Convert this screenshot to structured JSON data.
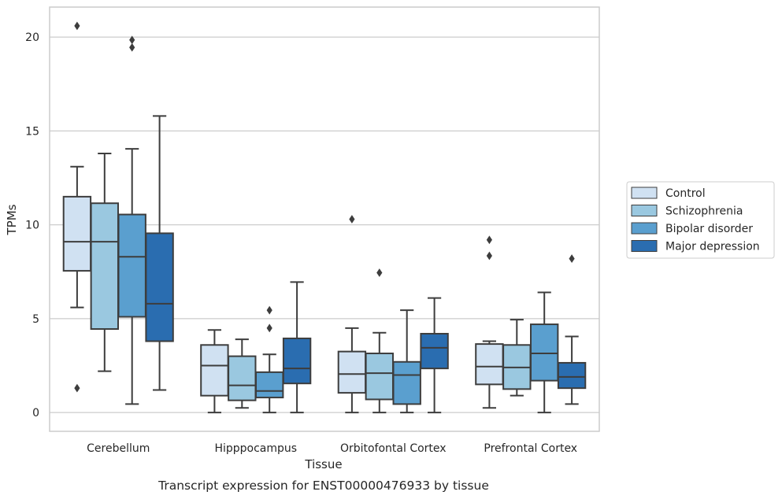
{
  "chart_data": {
    "type": "box",
    "title": "",
    "caption": "Transcript expression for ENST00000476933 by tissue",
    "xlabel": "Tissue",
    "ylabel": "TPMs",
    "ylim": [
      -1,
      21.6
    ],
    "yticks": [
      0,
      5,
      10,
      15,
      20
    ],
    "grid": "horizontal",
    "legend_position": "right",
    "categories": [
      "Cerebellum",
      "Hipppocampus",
      "Orbitofontal Cortex",
      "Prefrontal Cortex"
    ],
    "series": [
      {
        "name": "Control",
        "color": "#d0e1f2",
        "boxes": [
          {
            "whislo": 5.6,
            "q1": 7.55,
            "med": 9.1,
            "q3": 11.5,
            "whishi": 13.1,
            "fliers": [
              20.6,
              1.3
            ]
          },
          {
            "whislo": 0.0,
            "q1": 0.9,
            "med": 2.5,
            "q3": 3.6,
            "whishi": 4.4,
            "fliers": []
          },
          {
            "whislo": 0.0,
            "q1": 1.05,
            "med": 2.05,
            "q3": 3.25,
            "whishi": 4.5,
            "fliers": [
              10.3
            ]
          },
          {
            "whislo": 0.25,
            "q1": 1.5,
            "med": 2.45,
            "q3": 3.65,
            "whishi": 3.8,
            "fliers": [
              9.2,
              8.35
            ]
          }
        ]
      },
      {
        "name": "Schizophrenia",
        "color": "#9ac8e0",
        "boxes": [
          {
            "whislo": 2.2,
            "q1": 4.45,
            "med": 9.1,
            "q3": 11.15,
            "whishi": 13.8,
            "fliers": []
          },
          {
            "whislo": 0.25,
            "q1": 0.65,
            "med": 1.45,
            "q3": 3.0,
            "whishi": 3.9,
            "fliers": []
          },
          {
            "whislo": 0.0,
            "q1": 0.7,
            "med": 2.1,
            "q3": 3.15,
            "whishi": 4.25,
            "fliers": [
              7.45
            ]
          },
          {
            "whislo": 0.9,
            "q1": 1.25,
            "med": 2.4,
            "q3": 3.6,
            "whishi": 4.95,
            "fliers": []
          }
        ]
      },
      {
        "name": "Bipolar disorder",
        "color": "#5a9fcf",
        "boxes": [
          {
            "whislo": 0.45,
            "q1": 5.1,
            "med": 8.3,
            "q3": 10.55,
            "whishi": 14.05,
            "fliers": [
              19.85,
              19.45
            ]
          },
          {
            "whislo": 0.0,
            "q1": 0.8,
            "med": 1.15,
            "q3": 2.15,
            "whishi": 3.1,
            "fliers": [
              5.45,
              4.5
            ]
          },
          {
            "whislo": 0.0,
            "q1": 0.45,
            "med": 2.0,
            "q3": 2.7,
            "whishi": 5.45,
            "fliers": []
          },
          {
            "whislo": 0.0,
            "q1": 1.7,
            "med": 3.15,
            "q3": 4.7,
            "whishi": 6.4,
            "fliers": []
          }
        ]
      },
      {
        "name": "Major depression",
        "color": "#2a6db0",
        "boxes": [
          {
            "whislo": 1.2,
            "q1": 3.8,
            "med": 5.8,
            "q3": 9.55,
            "whishi": 15.8,
            "fliers": []
          },
          {
            "whislo": 0.0,
            "q1": 1.55,
            "med": 2.35,
            "q3": 3.95,
            "whishi": 6.95,
            "fliers": []
          },
          {
            "whislo": 0.0,
            "q1": 2.35,
            "med": 3.45,
            "q3": 4.2,
            "whishi": 6.1,
            "fliers": []
          },
          {
            "whislo": 0.45,
            "q1": 1.3,
            "med": 1.9,
            "q3": 2.65,
            "whishi": 4.05,
            "fliers": [
              8.2
            ]
          }
        ]
      }
    ]
  }
}
